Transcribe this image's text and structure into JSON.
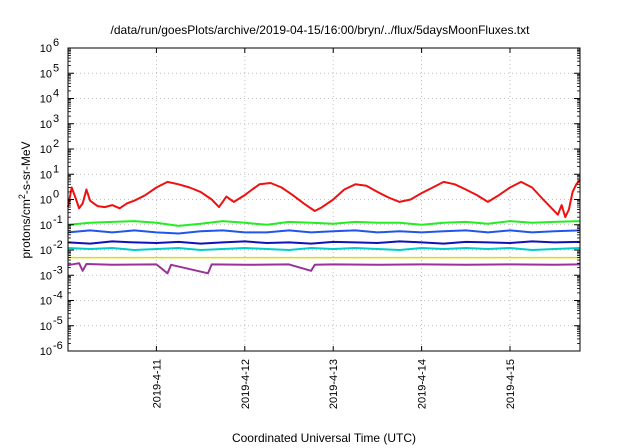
{
  "chart_data": {
    "type": "line",
    "title": "/data/run/goesPlots/archive/2019-04-15/16:00/bryn/../flux/5daysMoonFluxes.txt",
    "xlabel": "Coordinated Universal Time (UTC)",
    "ylabel": "protons/cm²-s-sr-MeV",
    "yscale": "log",
    "ylim": [
      1e-06,
      1000000.0
    ],
    "y_tick_labels": [
      {
        "base": "10",
        "exp": "-6"
      },
      {
        "base": "10",
        "exp": "-5"
      },
      {
        "base": "10",
        "exp": "-4"
      },
      {
        "base": "10",
        "exp": "-3"
      },
      {
        "base": "10",
        "exp": "-2"
      },
      {
        "base": "10",
        "exp": "-1"
      },
      {
        "base": "10",
        "exp": "0"
      },
      {
        "base": "10",
        "exp": "1"
      },
      {
        "base": "10",
        "exp": "2"
      },
      {
        "base": "10",
        "exp": "3"
      },
      {
        "base": "10",
        "exp": "4"
      },
      {
        "base": "10",
        "exp": "5"
      },
      {
        "base": "10",
        "exp": "6"
      }
    ],
    "xlim": [
      "2019-04-10 00:00",
      "2019-04-15 19:00"
    ],
    "x_ticks": [
      "2019-4-11",
      "2019-4-12",
      "2019-4-13",
      "2019-4-14",
      "2019-4-15"
    ],
    "grid": true,
    "series": [
      {
        "color": "#ee1111",
        "width": 2.0,
        "points": [
          [
            "2019-04-10 00:00",
            0.5
          ],
          [
            "2019-04-10 01:00",
            3.0
          ],
          [
            "2019-04-10 02:00",
            1.2
          ],
          [
            "2019-04-10 03:00",
            0.45
          ],
          [
            "2019-04-10 04:00",
            0.7
          ],
          [
            "2019-04-10 05:00",
            2.5
          ],
          [
            "2019-04-10 06:00",
            0.9
          ],
          [
            "2019-04-10 07:00",
            0.7
          ],
          [
            "2019-04-10 08:00",
            0.55
          ],
          [
            "2019-04-10 10:00",
            0.5
          ],
          [
            "2019-04-10 12:00",
            0.6
          ],
          [
            "2019-04-10 14:00",
            0.45
          ],
          [
            "2019-04-10 16:00",
            0.7
          ],
          [
            "2019-04-10 18:00",
            0.9
          ],
          [
            "2019-04-10 21:00",
            1.5
          ],
          [
            "2019-04-11 00:00",
            3.0
          ],
          [
            "2019-04-11 03:00",
            5.0
          ],
          [
            "2019-04-11 06:00",
            4.0
          ],
          [
            "2019-04-11 09:00",
            3.0
          ],
          [
            "2019-04-11 12:00",
            2.0
          ],
          [
            "2019-04-11 15:00",
            1.0
          ],
          [
            "2019-04-11 17:00",
            0.5
          ],
          [
            "2019-04-11 19:00",
            1.3
          ],
          [
            "2019-04-11 21:00",
            0.8
          ],
          [
            "2019-04-12 00:00",
            1.5
          ],
          [
            "2019-04-12 02:00",
            2.5
          ],
          [
            "2019-04-12 04:00",
            4.0
          ],
          [
            "2019-04-12 07:00",
            4.5
          ],
          [
            "2019-04-12 10:00",
            3.0
          ],
          [
            "2019-04-12 13:00",
            1.5
          ],
          [
            "2019-04-12 16:00",
            0.7
          ],
          [
            "2019-04-12 19:00",
            0.35
          ],
          [
            "2019-04-12 21:00",
            0.5
          ],
          [
            "2019-04-13 00:00",
            1.0
          ],
          [
            "2019-04-13 03:00",
            2.5
          ],
          [
            "2019-04-13 06:00",
            4.0
          ],
          [
            "2019-04-13 09:00",
            3.5
          ],
          [
            "2019-04-13 12:00",
            2.0
          ],
          [
            "2019-04-13 15:00",
            1.2
          ],
          [
            "2019-04-13 18:00",
            0.8
          ],
          [
            "2019-04-13 21:00",
            1.0
          ],
          [
            "2019-04-14 00:00",
            1.8
          ],
          [
            "2019-04-14 03:00",
            3.0
          ],
          [
            "2019-04-14 06:00",
            5.0
          ],
          [
            "2019-04-14 09:00",
            4.0
          ],
          [
            "2019-04-14 12:00",
            2.5
          ],
          [
            "2019-04-14 15:00",
            1.5
          ],
          [
            "2019-04-14 18:00",
            0.8
          ],
          [
            "2019-04-14 21:00",
            1.5
          ],
          [
            "2019-04-15 00:00",
            3.0
          ],
          [
            "2019-04-15 03:00",
            5.0
          ],
          [
            "2019-04-15 06:00",
            3.0
          ],
          [
            "2019-04-15 09:00",
            1.0
          ],
          [
            "2019-04-15 11:00",
            0.5
          ],
          [
            "2019-04-15 13:00",
            0.25
          ],
          [
            "2019-04-15 14:00",
            0.6
          ],
          [
            "2019-04-15 15:00",
            0.2
          ],
          [
            "2019-04-15 16:00",
            0.4
          ],
          [
            "2019-04-15 17:00",
            2.0
          ],
          [
            "2019-04-15 18:00",
            4.0
          ],
          [
            "2019-04-15 19:00",
            6.0
          ]
        ]
      },
      {
        "color": "#22ee22",
        "width": 2.0,
        "points": [
          [
            "2019-04-10 00:00",
            0.1
          ],
          [
            "2019-04-10 06:00",
            0.12
          ],
          [
            "2019-04-10 12:00",
            0.13
          ],
          [
            "2019-04-10 18:00",
            0.14
          ],
          [
            "2019-04-11 00:00",
            0.12
          ],
          [
            "2019-04-11 06:00",
            0.09
          ],
          [
            "2019-04-11 12:00",
            0.11
          ],
          [
            "2019-04-11 18:00",
            0.14
          ],
          [
            "2019-04-12 00:00",
            0.12
          ],
          [
            "2019-04-12 06:00",
            0.1
          ],
          [
            "2019-04-12 12:00",
            0.13
          ],
          [
            "2019-04-12 18:00",
            0.12
          ],
          [
            "2019-04-13 00:00",
            0.11
          ],
          [
            "2019-04-13 06:00",
            0.13
          ],
          [
            "2019-04-13 12:00",
            0.12
          ],
          [
            "2019-04-13 18:00",
            0.12
          ],
          [
            "2019-04-14 00:00",
            0.1
          ],
          [
            "2019-04-14 06:00",
            0.12
          ],
          [
            "2019-04-14 12:00",
            0.13
          ],
          [
            "2019-04-14 18:00",
            0.11
          ],
          [
            "2019-04-15 00:00",
            0.14
          ],
          [
            "2019-04-15 06:00",
            0.12
          ],
          [
            "2019-04-15 12:00",
            0.13
          ],
          [
            "2019-04-15 19:00",
            0.14
          ]
        ]
      },
      {
        "color": "#2255ee",
        "width": 2.0,
        "points": [
          [
            "2019-04-10 00:00",
            0.05
          ],
          [
            "2019-04-10 06:00",
            0.06
          ],
          [
            "2019-04-10 12:00",
            0.05
          ],
          [
            "2019-04-10 18:00",
            0.06
          ],
          [
            "2019-04-11 00:00",
            0.05
          ],
          [
            "2019-04-11 06:00",
            0.045
          ],
          [
            "2019-04-11 12:00",
            0.055
          ],
          [
            "2019-04-11 18:00",
            0.06
          ],
          [
            "2019-04-12 00:00",
            0.05
          ],
          [
            "2019-04-12 06:00",
            0.05
          ],
          [
            "2019-04-12 12:00",
            0.06
          ],
          [
            "2019-04-12 18:00",
            0.05
          ],
          [
            "2019-04-13 00:00",
            0.055
          ],
          [
            "2019-04-13 06:00",
            0.06
          ],
          [
            "2019-04-13 12:00",
            0.05
          ],
          [
            "2019-04-13 18:00",
            0.055
          ],
          [
            "2019-04-14 00:00",
            0.05
          ],
          [
            "2019-04-14 06:00",
            0.055
          ],
          [
            "2019-04-14 12:00",
            0.06
          ],
          [
            "2019-04-14 18:00",
            0.05
          ],
          [
            "2019-04-15 00:00",
            0.06
          ],
          [
            "2019-04-15 06:00",
            0.05
          ],
          [
            "2019-04-15 12:00",
            0.055
          ],
          [
            "2019-04-15 19:00",
            0.06
          ]
        ]
      },
      {
        "color": "#00cccc",
        "width": 2.0,
        "points": [
          [
            "2019-04-10 00:00",
            0.012
          ],
          [
            "2019-04-10 06:00",
            0.011
          ],
          [
            "2019-04-10 12:00",
            0.012
          ],
          [
            "2019-04-10 18:00",
            0.01
          ],
          [
            "2019-04-11 00:00",
            0.011
          ],
          [
            "2019-04-11 06:00",
            0.012
          ],
          [
            "2019-04-11 12:00",
            0.01
          ],
          [
            "2019-04-11 18:00",
            0.011
          ],
          [
            "2019-04-12 00:00",
            0.012
          ],
          [
            "2019-04-12 06:00",
            0.011
          ],
          [
            "2019-04-12 12:00",
            0.01
          ],
          [
            "2019-04-12 18:00",
            0.012
          ],
          [
            "2019-04-13 00:00",
            0.011
          ],
          [
            "2019-04-13 06:00",
            0.012
          ],
          [
            "2019-04-13 12:00",
            0.011
          ],
          [
            "2019-04-13 18:00",
            0.01
          ],
          [
            "2019-04-14 00:00",
            0.012
          ],
          [
            "2019-04-14 06:00",
            0.011
          ],
          [
            "2019-04-14 12:00",
            0.012
          ],
          [
            "2019-04-14 18:00",
            0.011
          ],
          [
            "2019-04-15 00:00",
            0.012
          ],
          [
            "2019-04-15 06:00",
            0.01
          ],
          [
            "2019-04-15 12:00",
            0.011
          ],
          [
            "2019-04-15 19:00",
            0.012
          ]
        ]
      },
      {
        "color": "#1111bb",
        "width": 2.0,
        "points": [
          [
            "2019-04-10 00:00",
            0.02
          ],
          [
            "2019-04-10 06:00",
            0.018
          ],
          [
            "2019-04-10 12:00",
            0.022
          ],
          [
            "2019-04-10 18:00",
            0.02
          ],
          [
            "2019-04-11 00:00",
            0.019
          ],
          [
            "2019-04-11 06:00",
            0.021
          ],
          [
            "2019-04-11 12:00",
            0.018
          ],
          [
            "2019-04-11 18:00",
            0.02
          ],
          [
            "2019-04-12 00:00",
            0.022
          ],
          [
            "2019-04-12 06:00",
            0.019
          ],
          [
            "2019-04-12 12:00",
            0.02
          ],
          [
            "2019-04-12 18:00",
            0.018
          ],
          [
            "2019-04-13 00:00",
            0.021
          ],
          [
            "2019-04-13 06:00",
            0.02
          ],
          [
            "2019-04-13 12:00",
            0.019
          ],
          [
            "2019-04-13 18:00",
            0.022
          ],
          [
            "2019-04-14 00:00",
            0.02
          ],
          [
            "2019-04-14 06:00",
            0.018
          ],
          [
            "2019-04-14 12:00",
            0.021
          ],
          [
            "2019-04-14 18:00",
            0.02
          ],
          [
            "2019-04-15 00:00",
            0.019
          ],
          [
            "2019-04-15 06:00",
            0.022
          ],
          [
            "2019-04-15 12:00",
            0.02
          ],
          [
            "2019-04-15 19:00",
            0.021
          ]
        ]
      },
      {
        "color": "#dddd00",
        "width": 1.5,
        "points": [
          [
            "2019-04-10 00:00",
            0.005
          ],
          [
            "2019-04-11 00:00",
            0.005
          ],
          [
            "2019-04-12 00:00",
            0.005
          ],
          [
            "2019-04-13 00:00",
            0.005
          ],
          [
            "2019-04-14 00:00",
            0.005
          ],
          [
            "2019-04-15 00:00",
            0.005
          ],
          [
            "2019-04-15 19:00",
            0.005
          ]
        ]
      },
      {
        "color": "#993399",
        "width": 2.0,
        "points": [
          [
            "2019-04-10 00:00",
            0.0025
          ],
          [
            "2019-04-10 03:00",
            0.003
          ],
          [
            "2019-04-10 04:00",
            0.0015
          ],
          [
            "2019-04-10 05:00",
            0.0028
          ],
          [
            "2019-04-10 12:00",
            0.0026
          ],
          [
            "2019-04-11 00:00",
            0.0027
          ],
          [
            "2019-04-11 03:00",
            0.0012
          ],
          [
            "2019-04-11 04:00",
            0.0026
          ],
          [
            "2019-04-11 14:00",
            0.0012
          ],
          [
            "2019-04-11 15:00",
            0.0027
          ],
          [
            "2019-04-12 00:00",
            0.0026
          ],
          [
            "2019-04-12 12:00",
            0.0027
          ],
          [
            "2019-04-12 18:00",
            0.0015
          ],
          [
            "2019-04-12 19:00",
            0.0026
          ],
          [
            "2019-04-13 00:00",
            0.0027
          ],
          [
            "2019-04-13 12:00",
            0.0026
          ],
          [
            "2019-04-14 00:00",
            0.0027
          ],
          [
            "2019-04-14 12:00",
            0.0026
          ],
          [
            "2019-04-15 00:00",
            0.0027
          ],
          [
            "2019-04-15 12:00",
            0.0026
          ],
          [
            "2019-04-15 19:00",
            0.0027
          ]
        ]
      }
    ]
  }
}
